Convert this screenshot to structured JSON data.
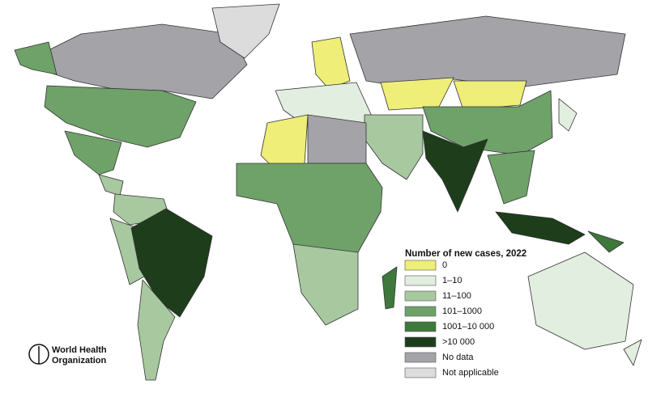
{
  "legend": {
    "title": "Number of new cases, 2022",
    "items": [
      {
        "label": "0",
        "color": "#eeee78"
      },
      {
        "label": "1–10",
        "color": "#e2eedf"
      },
      {
        "label": "11–100",
        "color": "#a8c8a0"
      },
      {
        "label": "101–1000",
        "color": "#6fa269"
      },
      {
        "label": "1001–10 000",
        "color": "#3e783b"
      },
      {
        "label": ">10 000",
        "color": "#1d3d1b"
      },
      {
        "label": "No data",
        "color": "#a3a3a8"
      },
      {
        "label": "Not applicable",
        "color": "#dcdcdc"
      }
    ]
  },
  "logo": {
    "lines": [
      "World Health",
      "Organization"
    ]
  }
}
